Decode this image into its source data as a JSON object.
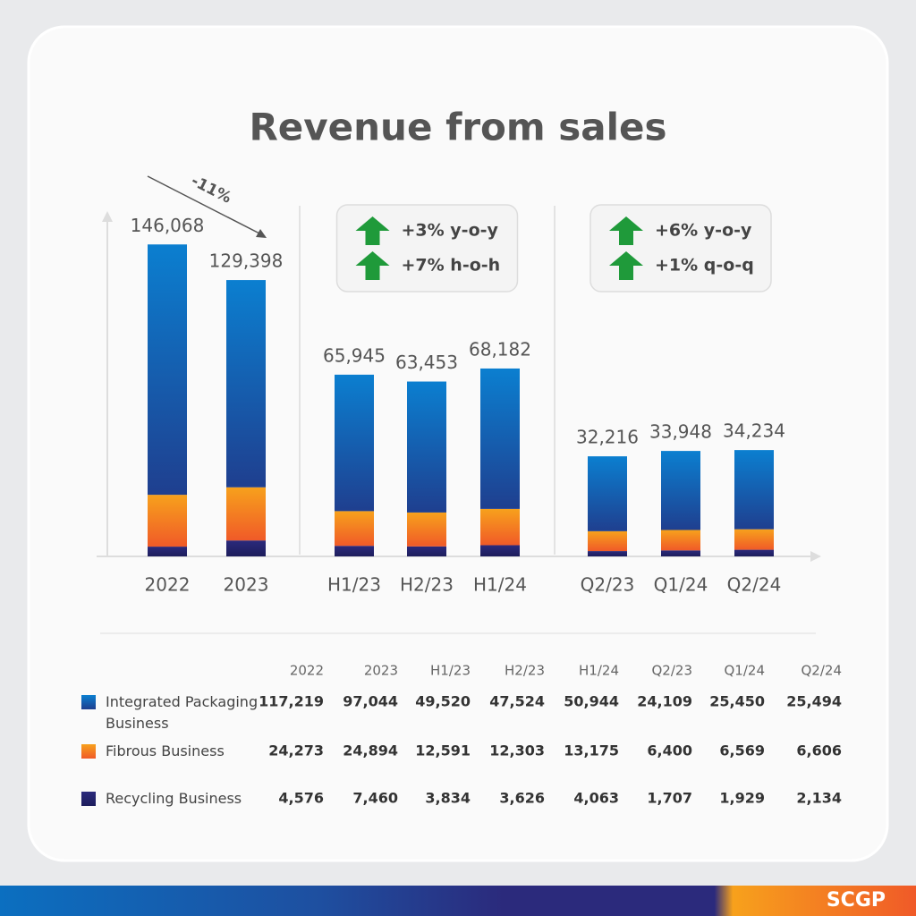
{
  "chart_data": {
    "type": "stacked_bar",
    "title": "Revenue from sales",
    "panels": [
      {
        "categories": [
          "2022",
          "2023"
        ],
        "ylim": [
          0,
          160000
        ],
        "annotations": [
          "-11%"
        ]
      },
      {
        "categories": [
          "H1/23",
          "H2/23",
          "H1/24"
        ],
        "ylim": [
          0,
          124000
        ],
        "annotations": [
          "+3% y-o-y",
          "+7% h-o-h"
        ]
      },
      {
        "categories": [
          "Q2/23",
          "Q1/24",
          "Q2/24"
        ],
        "ylim": [
          0,
          110000
        ],
        "annotations": [
          "+6% y-o-y",
          "+1% q-o-q"
        ]
      }
    ],
    "series": [
      {
        "name": "Integrated Packaging Business",
        "color": "#0b7fd0",
        "values": [
          117219,
          97044,
          49520,
          47524,
          50944,
          24109,
          25450,
          25494
        ],
        "value_labels": [
          "117,219",
          "97,044",
          "49,520",
          "47,524",
          "50,944",
          "24,109",
          "25,450",
          "25,494"
        ]
      },
      {
        "name": "Fibrous Business",
        "color": "#f7a11c",
        "values": [
          24273,
          24894,
          12591,
          12303,
          13175,
          6400,
          6569,
          6606
        ],
        "value_labels": [
          "24,273",
          "24,894",
          "12,591",
          "12,303",
          "13,175",
          "6,400",
          "6,569",
          "6,606"
        ]
      },
      {
        "name": "Recycling Business",
        "color": "#2b2a7c",
        "values": [
          4576,
          7460,
          3834,
          3626,
          4063,
          1707,
          1929,
          2134
        ],
        "value_labels": [
          "4,576",
          "7,460",
          "3,834",
          "3,626",
          "4,063",
          "1,707",
          "1,929",
          "2,134"
        ]
      }
    ],
    "totals": [
      146068,
      129398,
      65945,
      63453,
      68182,
      32216,
      33948,
      34234
    ],
    "total_labels": [
      "146,068",
      "129,398",
      "65,945",
      "63,453",
      "68,182",
      "32,216",
      "33,948",
      "34,234"
    ]
  },
  "brand": "SCGP"
}
